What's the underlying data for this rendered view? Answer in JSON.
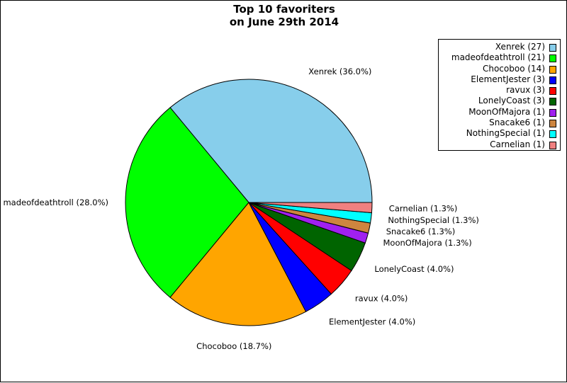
{
  "chart_data": {
    "type": "pie",
    "title": [
      "Top 10 favoriters",
      "on June 29th 2014"
    ],
    "slices": [
      {
        "name": "Xenrek",
        "value": 27,
        "percent": "36.0%",
        "color": "#87ceeb",
        "legend": "Xenrek (27)",
        "label": "Xenrek (36.0%)"
      },
      {
        "name": "madeofdeathtroll",
        "value": 21,
        "percent": "28.0%",
        "color": "#00ff00",
        "legend": "madeofdeathtroll (21)",
        "label": "madeofdeathtroll (28.0%)"
      },
      {
        "name": "Chocoboo",
        "value": 14,
        "percent": "18.7%",
        "color": "#ffa500",
        "legend": "Chocoboo (14)",
        "label": "Chocoboo (18.7%)"
      },
      {
        "name": "ElementJester",
        "value": 3,
        "percent": "4.0%",
        "color": "#0000ff",
        "legend": "ElementJester (3)",
        "label": "ElementJester (4.0%)"
      },
      {
        "name": "ravux",
        "value": 3,
        "percent": "4.0%",
        "color": "#ff0000",
        "legend": "ravux (3)",
        "label": "ravux (4.0%)"
      },
      {
        "name": "LonelyCoast",
        "value": 3,
        "percent": "4.0%",
        "color": "#006400",
        "legend": "LonelyCoast (3)",
        "label": "LonelyCoast (4.0%)"
      },
      {
        "name": "MoonOfMajora",
        "value": 1,
        "percent": "1.3%",
        "color": "#a020f0",
        "legend": "MoonOfMajora (1)",
        "label": "MoonOfMajora (1.3%)"
      },
      {
        "name": "Snacake6",
        "value": 1,
        "percent": "1.3%",
        "color": "#cd853f",
        "legend": "Snacake6 (1)",
        "label": "Snacake6 (1.3%)"
      },
      {
        "name": "NothingSpecial",
        "value": 1,
        "percent": "1.3%",
        "color": "#00ffff",
        "legend": "NothingSpecial (1)",
        "label": "NothingSpecial (1.3%)"
      },
      {
        "name": "Carnelian",
        "value": 1,
        "percent": "1.3%",
        "color": "#f08080",
        "legend": "Carnelian (1)",
        "label": "Carnelian (1.3%)"
      }
    ],
    "legend_position": "top-right",
    "start_angle_deg": 0,
    "direction": "counterclockwise"
  }
}
